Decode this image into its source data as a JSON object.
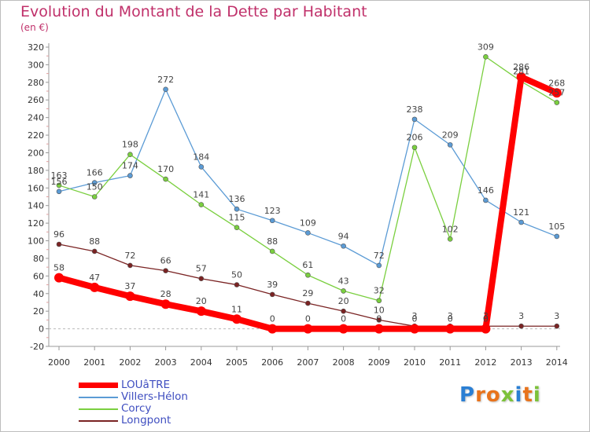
{
  "header": {
    "title": "Evolution du Montant de la Dette par Habitant",
    "subtitle": "(en €)"
  },
  "brand": {
    "letters": [
      "P",
      "r",
      "o",
      "x",
      "i",
      "t",
      "i"
    ],
    "colors": [
      "#2a7fd4",
      "#e8731c",
      "#e8731c",
      "#7cc23a",
      "#2a7fd4",
      "#e8731c",
      "#7cc23a"
    ]
  },
  "chart_data": {
    "type": "line",
    "title": "Evolution du Montant de la Dette par Habitant",
    "subtitle": "(en €)",
    "xlabel": "",
    "ylabel": "",
    "x": [
      "2000",
      "2001",
      "2002",
      "2003",
      "2004",
      "2005",
      "2006",
      "2007",
      "2008",
      "2009",
      "2010",
      "2011",
      "2012",
      "2013",
      "2014"
    ],
    "yticks": [
      320,
      300,
      280,
      260,
      240,
      220,
      200,
      180,
      160,
      140,
      120,
      100,
      80,
      60,
      40,
      20,
      0,
      -20
    ],
    "ylim": [
      -20,
      320
    ],
    "grid": false,
    "legend_position": "bottom-left",
    "series": [
      {
        "name": "LOUâTRE",
        "color": "#ff0000",
        "values": [
          58,
          47,
          37,
          28,
          20,
          11,
          0,
          0,
          0,
          0,
          0,
          0,
          0,
          286,
          268
        ],
        "labels": [
          "58",
          "47",
          "37",
          "28",
          "20",
          "11",
          "0",
          "0",
          "0",
          "0",
          "0",
          "0",
          "0",
          "286",
          "268"
        ]
      },
      {
        "name": "Villers-Hélon",
        "color": "#5b9bd5",
        "values": [
          156,
          166,
          174,
          272,
          184,
          136,
          123,
          109,
          94,
          72,
          238,
          209,
          146,
          121,
          105
        ],
        "labels": [
          "156",
          "166",
          "174",
          "272",
          "184",
          "136",
          "123",
          "109",
          "94",
          "72",
          "238",
          "209",
          "146",
          "121",
          "105"
        ]
      },
      {
        "name": "Corcy",
        "color": "#7acf3f",
        "values": [
          163,
          150,
          198,
          170,
          141,
          115,
          88,
          61,
          43,
          32,
          206,
          102,
          309,
          281,
          257
        ],
        "labels": [
          "163",
          "150",
          "198",
          "170",
          "141",
          "115",
          "88",
          "61",
          "43",
          "32",
          "206",
          "102",
          "309",
          "281",
          "257"
        ]
      },
      {
        "name": "Longpont",
        "color": "#7a2323",
        "values": [
          96,
          88,
          72,
          66,
          57,
          50,
          39,
          29,
          20,
          10,
          3,
          3,
          3,
          3,
          3
        ],
        "labels": [
          "96",
          "88",
          "72",
          "66",
          "57",
          "50",
          "39",
          "29",
          "20",
          "10",
          "3",
          "3",
          "3",
          "3",
          "3"
        ]
      }
    ]
  }
}
